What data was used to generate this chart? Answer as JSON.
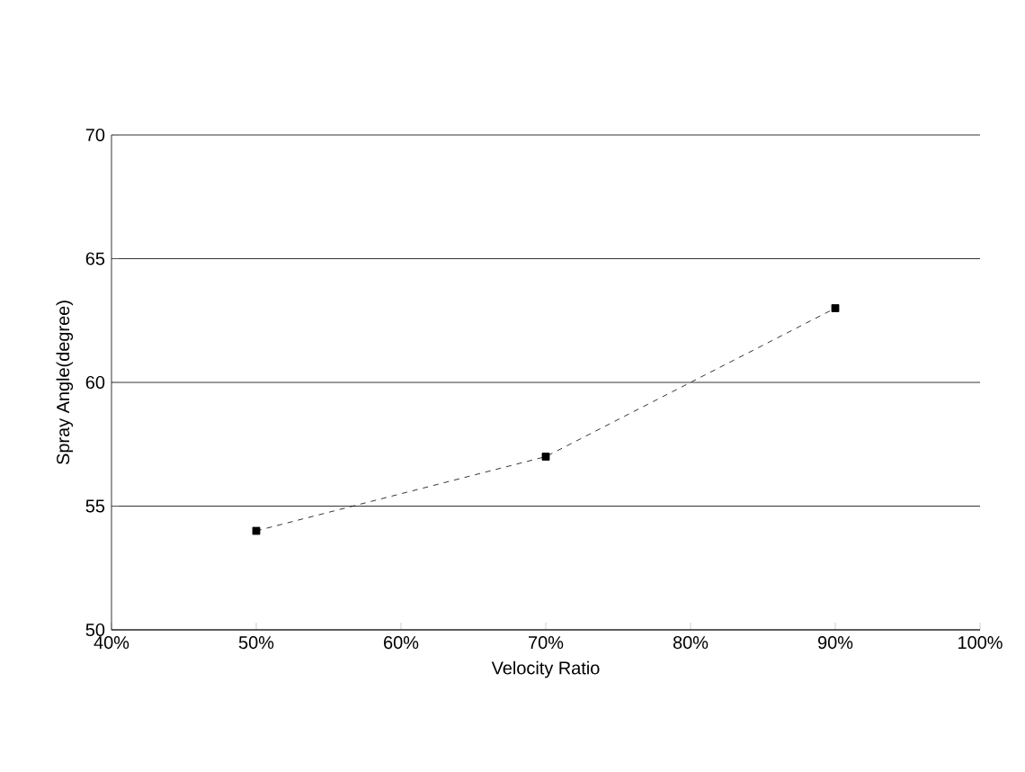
{
  "chart_data": {
    "type": "line",
    "xlabel": "Velocity Ratio",
    "ylabel": "Spray Angle(degree)",
    "x": [
      50,
      70,
      90
    ],
    "series": [
      {
        "color": "#000000",
        "values": [
          54,
          57,
          63
        ]
      }
    ],
    "xlim": [
      40,
      100
    ],
    "xticks": [
      {
        "value": 40,
        "label": "40%"
      },
      {
        "value": 50,
        "label": "50%"
      },
      {
        "value": 60,
        "label": "60%"
      },
      {
        "value": 70,
        "label": "70%"
      },
      {
        "value": 80,
        "label": "80%"
      },
      {
        "value": 90,
        "label": "90%"
      },
      {
        "value": 100,
        "label": "100%"
      }
    ],
    "ylim": [
      50,
      70
    ],
    "yticks": [
      50,
      55,
      60,
      65,
      70
    ],
    "grid": "y",
    "marker": "square",
    "line_style": "dashed"
  }
}
